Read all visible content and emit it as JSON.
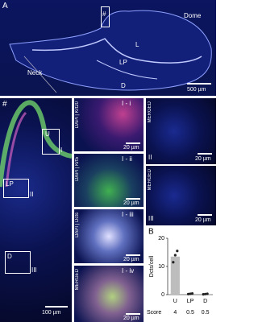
{
  "panels": {
    "a": {
      "label": "A",
      "marker": "#",
      "regions": [
        "Dome",
        "L",
        "LP",
        "Neck",
        "D"
      ],
      "scale": "500 µm"
    },
    "overview": {
      "marker": "#",
      "boxes": [
        "U",
        "I",
        "LP",
        "II",
        "D",
        "III"
      ],
      "scale": "100 µm"
    },
    "zooms": [
      {
        "id": "I - i",
        "stain": "DAPI | Krt20",
        "scale": "20 µm"
      },
      {
        "id": "I - ii",
        "stain": "DAPI | Krt5",
        "scale": "20 µm"
      },
      {
        "id": "I - iii",
        "stain": "DAPI | Dcts",
        "scale": "20 µm"
      },
      {
        "id": "I - iv",
        "stain": "MERGED",
        "scale": "20 µm"
      }
    ],
    "side": [
      {
        "id": "II",
        "stain": "MERGED",
        "scale": "20 µm"
      },
      {
        "id": "III",
        "stain": "MERGED",
        "scale": "20 µm"
      }
    ]
  },
  "chart_data": {
    "type": "bar",
    "panel_label": "B",
    "y_label": "Dcts/cell",
    "categories": [
      "U",
      "LP",
      "D"
    ],
    "values": [
      13.5,
      0.3,
      0.2
    ],
    "points": [
      [
        11.5,
        14,
        15.5
      ],
      [
        0.2,
        0.3,
        0.4
      ],
      [
        0.1,
        0.2,
        0.3
      ]
    ],
    "color": "#bdbdbd",
    "point_color": "#222",
    "ylim": [
      0,
      20
    ],
    "yticks": [
      0,
      10,
      20
    ],
    "score_label": "Score",
    "scores": [
      4,
      0.5,
      0.5
    ]
  }
}
